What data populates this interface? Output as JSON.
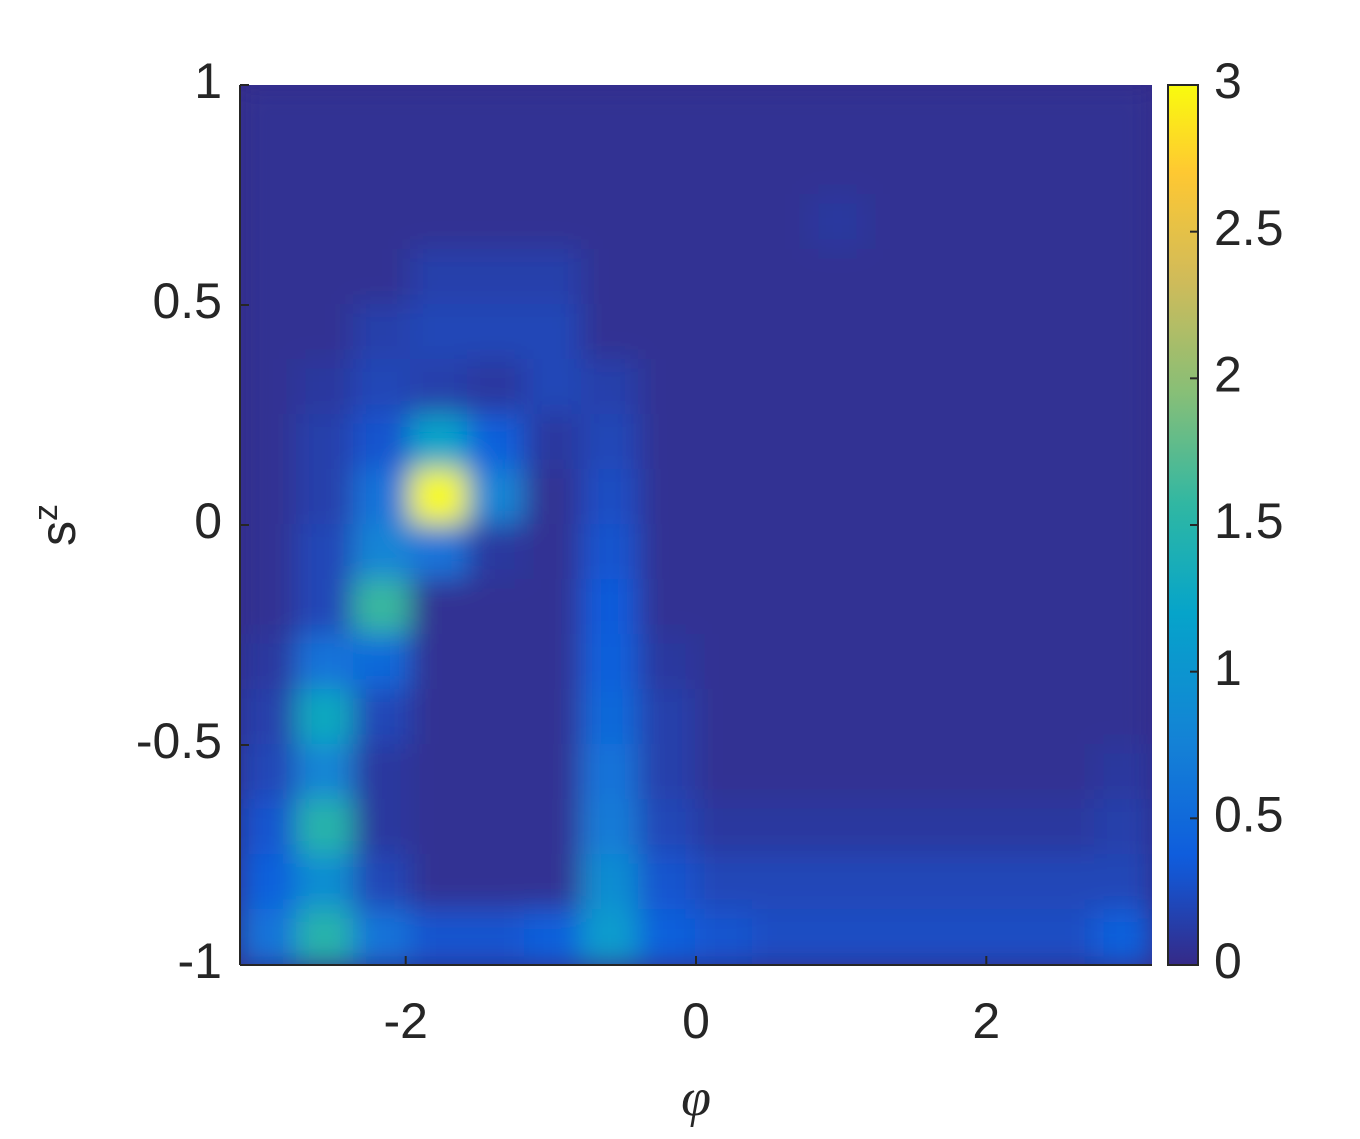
{
  "chart_data": {
    "type": "heatmap",
    "xlabel": "φ",
    "ylabel": {
      "text": "s",
      "subscript": "z"
    },
    "xlim": [
      -3.14159,
      3.14159
    ],
    "xticks": [
      -2,
      0,
      2
    ],
    "ylim": [
      -1,
      1
    ],
    "yticks": [
      -1,
      -0.5,
      0,
      0.5,
      1
    ],
    "colormap": "parula",
    "clim": [
      0,
      3
    ],
    "cticks": [
      0,
      0.5,
      1,
      1.5,
      2,
      2.5,
      3
    ],
    "z": [
      [
        0.05,
        0.05,
        0.05,
        0.05,
        0.05,
        0.05,
        0.05,
        0.05,
        0.05,
        0.05,
        0.05,
        0.05,
        0.05,
        0.05,
        0.05,
        0.05
      ],
      [
        0.05,
        0.05,
        0.05,
        0.05,
        0.05,
        0.05,
        0.05,
        0.05,
        0.05,
        0.05,
        0.05,
        0.05,
        0.05,
        0.05,
        0.05,
        0.05
      ],
      [
        0.05,
        0.05,
        0.05,
        0.05,
        0.05,
        0.05,
        0.05,
        0.05,
        0.05,
        0.05,
        0.1,
        0.05,
        0.05,
        0.05,
        0.05,
        0.05
      ],
      [
        0.05,
        0.05,
        0.05,
        0.15,
        0.15,
        0.15,
        0.05,
        0.05,
        0.05,
        0.05,
        0.05,
        0.05,
        0.05,
        0.05,
        0.05,
        0.05
      ],
      [
        0.05,
        0.05,
        0.15,
        0.2,
        0.2,
        0.2,
        0.05,
        0.05,
        0.05,
        0.05,
        0.05,
        0.05,
        0.05,
        0.05,
        0.05,
        0.05
      ],
      [
        0.05,
        0.1,
        0.2,
        0.15,
        0.1,
        0.2,
        0.15,
        0.05,
        0.05,
        0.05,
        0.05,
        0.05,
        0.05,
        0.05,
        0.05,
        0.05
      ],
      [
        0.05,
        0.15,
        0.3,
        1.2,
        0.4,
        0.1,
        0.2,
        0.05,
        0.05,
        0.05,
        0.05,
        0.05,
        0.05,
        0.05,
        0.05,
        0.05
      ],
      [
        0.05,
        0.15,
        0.6,
        3.0,
        0.8,
        0.05,
        0.25,
        0.05,
        0.05,
        0.05,
        0.05,
        0.05,
        0.05,
        0.05,
        0.05,
        0.05
      ],
      [
        0.05,
        0.2,
        0.8,
        0.6,
        0.1,
        0.05,
        0.3,
        0.05,
        0.05,
        0.05,
        0.05,
        0.05,
        0.05,
        0.05,
        0.05,
        0.05
      ],
      [
        0.05,
        0.2,
        1.6,
        0.05,
        0.05,
        0.05,
        0.35,
        0.05,
        0.05,
        0.05,
        0.05,
        0.05,
        0.05,
        0.05,
        0.05,
        0.05
      ],
      [
        0.1,
        0.6,
        0.5,
        0.05,
        0.05,
        0.05,
        0.4,
        0.1,
        0.05,
        0.05,
        0.05,
        0.05,
        0.05,
        0.05,
        0.05,
        0.05
      ],
      [
        0.15,
        1.3,
        0.2,
        0.05,
        0.05,
        0.05,
        0.5,
        0.15,
        0.05,
        0.05,
        0.05,
        0.05,
        0.05,
        0.05,
        0.05,
        0.05
      ],
      [
        0.2,
        0.8,
        0.1,
        0.05,
        0.05,
        0.05,
        0.6,
        0.15,
        0.05,
        0.05,
        0.05,
        0.05,
        0.05,
        0.05,
        0.05,
        0.1
      ],
      [
        0.3,
        1.5,
        0.1,
        0.05,
        0.05,
        0.05,
        0.7,
        0.2,
        0.1,
        0.1,
        0.1,
        0.1,
        0.1,
        0.1,
        0.1,
        0.15
      ],
      [
        0.4,
        0.9,
        0.2,
        0.05,
        0.05,
        0.05,
        0.9,
        0.3,
        0.2,
        0.2,
        0.2,
        0.2,
        0.2,
        0.2,
        0.2,
        0.2
      ],
      [
        0.6,
        1.5,
        0.6,
        0.3,
        0.3,
        0.4,
        1.1,
        0.4,
        0.3,
        0.25,
        0.25,
        0.25,
        0.25,
        0.25,
        0.25,
        0.4
      ]
    ]
  }
}
